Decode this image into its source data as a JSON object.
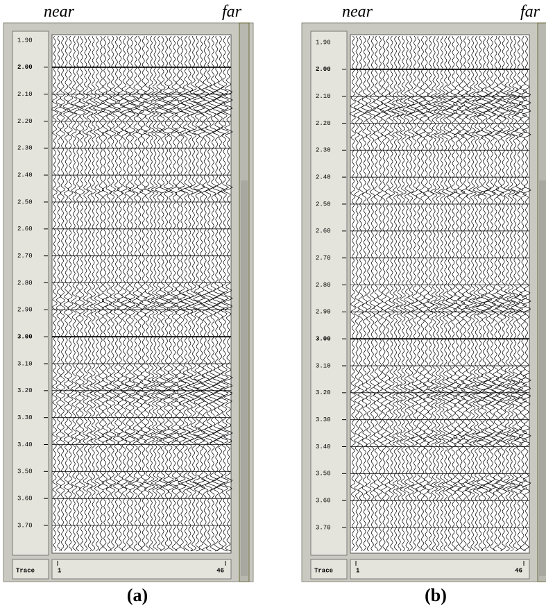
{
  "panels": [
    {
      "near": "near",
      "far": "far",
      "caption": "(a)",
      "time_ticks": [
        {
          "value": 1.9,
          "label": "1.90"
        },
        {
          "value": 2.0,
          "label": "2.00"
        },
        {
          "value": 2.1,
          "label": "2.10"
        },
        {
          "value": 2.2,
          "label": "2.20"
        },
        {
          "value": 2.3,
          "label": "2.30"
        },
        {
          "value": 2.4,
          "label": "2.40"
        },
        {
          "value": 2.5,
          "label": "2.50"
        },
        {
          "value": 2.6,
          "label": "2.60"
        },
        {
          "value": 2.7,
          "label": "2.70"
        },
        {
          "value": 2.8,
          "label": "2.80"
        },
        {
          "value": 2.9,
          "label": "2.90"
        },
        {
          "value": 3.0,
          "label": "3.00"
        },
        {
          "value": 3.1,
          "label": "3.10"
        },
        {
          "value": 3.2,
          "label": "3.20"
        },
        {
          "value": 3.3,
          "label": "3.30"
        },
        {
          "value": 3.4,
          "label": "3.40"
        },
        {
          "value": 3.5,
          "label": "3.50"
        },
        {
          "value": 3.6,
          "label": "3.60"
        },
        {
          "value": 3.7,
          "label": "3.70"
        }
      ],
      "trace_label": "Trace",
      "trace_ticks": [
        1,
        46
      ]
    },
    {
      "near": "near",
      "far": "far",
      "caption": "(b)",
      "time_ticks": [
        {
          "value": 1.9,
          "label": "1.90"
        },
        {
          "value": 2.0,
          "label": "2.00"
        },
        {
          "value": 2.1,
          "label": "2.10"
        },
        {
          "value": 2.2,
          "label": "2.20"
        },
        {
          "value": 2.3,
          "label": "2.30"
        },
        {
          "value": 2.4,
          "label": "2.40"
        },
        {
          "value": 2.5,
          "label": "2.50"
        },
        {
          "value": 2.6,
          "label": "2.60"
        },
        {
          "value": 2.7,
          "label": "2.70"
        },
        {
          "value": 2.8,
          "label": "2.80"
        },
        {
          "value": 2.9,
          "label": "2.90"
        },
        {
          "value": 3.0,
          "label": "3.00"
        },
        {
          "value": 3.1,
          "label": "3.10"
        },
        {
          "value": 3.2,
          "label": "3.20"
        },
        {
          "value": 3.3,
          "label": "3.30"
        },
        {
          "value": 3.4,
          "label": "3.40"
        },
        {
          "value": 3.5,
          "label": "3.50"
        },
        {
          "value": 3.6,
          "label": "3.60"
        },
        {
          "value": 3.7,
          "label": "3.70"
        }
      ],
      "trace_label": "Trace",
      "trace_ticks": [
        1,
        46
      ]
    }
  ]
}
